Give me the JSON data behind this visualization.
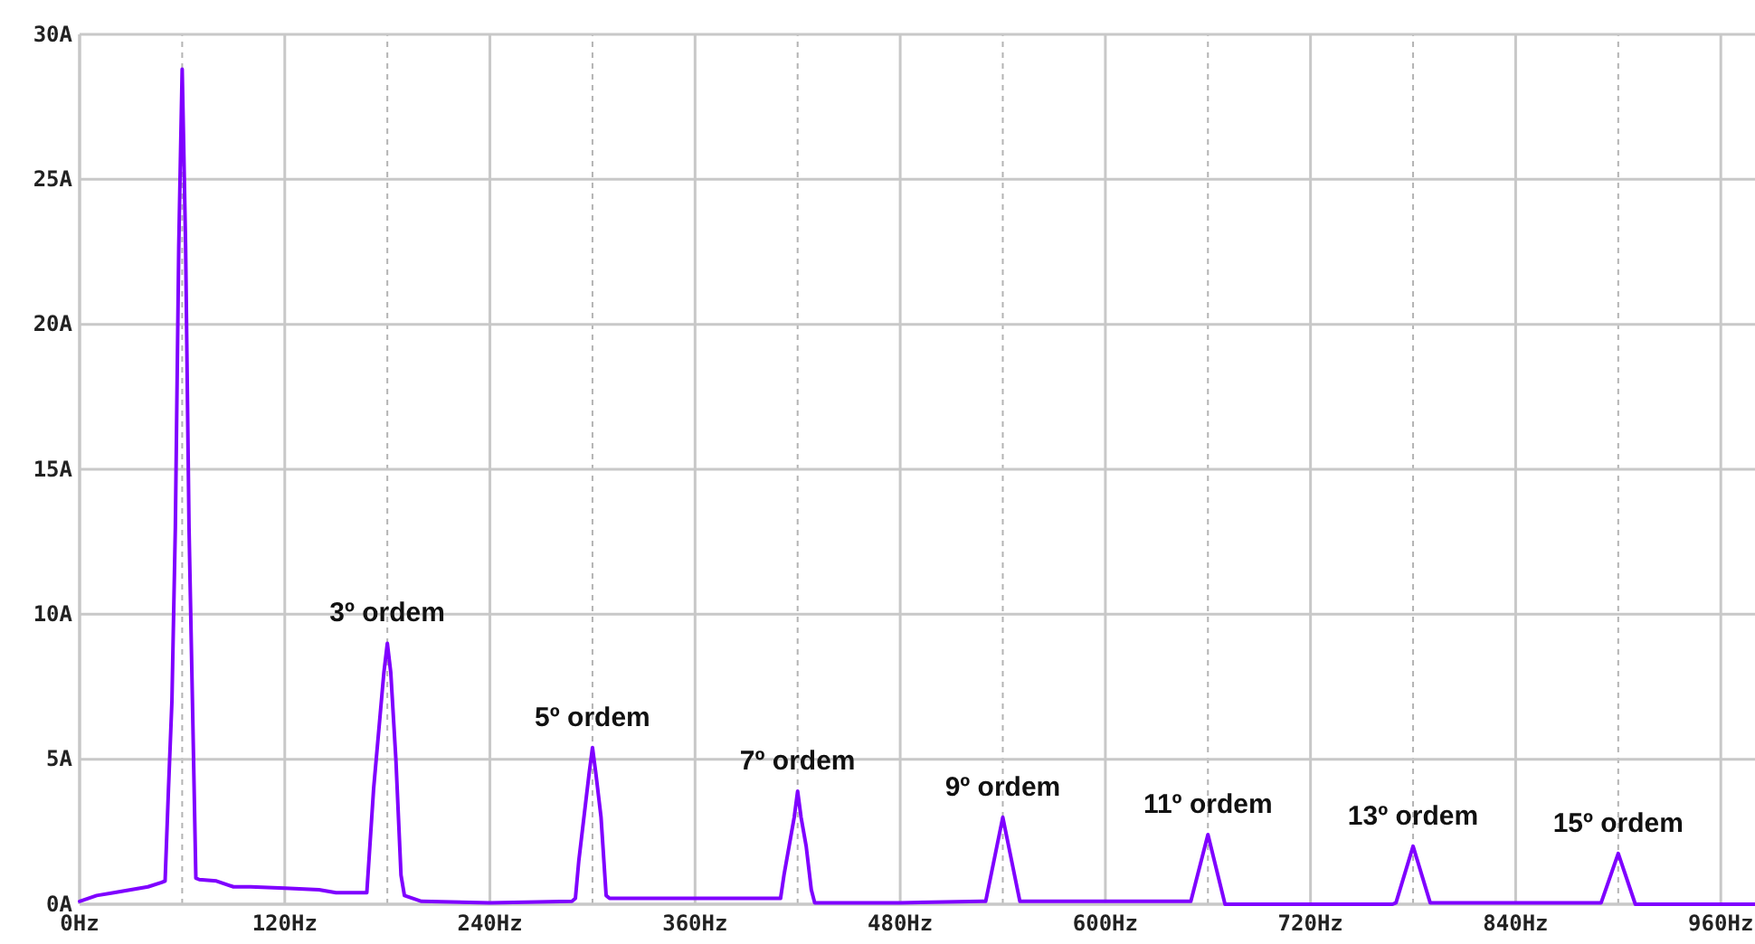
{
  "chart_data": {
    "type": "line",
    "x": [
      0,
      10,
      20,
      30,
      40,
      48,
      50,
      52,
      54,
      56,
      58,
      59,
      60,
      61,
      62,
      64,
      66,
      68,
      70,
      80,
      90,
      100,
      120,
      140,
      150,
      166,
      168,
      172,
      175,
      178,
      180,
      182,
      185,
      188,
      190,
      200,
      240,
      288,
      290,
      292,
      295,
      298,
      300,
      302,
      305,
      308,
      310,
      360,
      408,
      410,
      412,
      415,
      418,
      420,
      422,
      425,
      428,
      430,
      480,
      528,
      530,
      540,
      550,
      600,
      648,
      650,
      660,
      670,
      720,
      768,
      770,
      780,
      790,
      840,
      888,
      890,
      900,
      910,
      980
    ],
    "series": [
      {
        "color": "#7f00ff",
        "values": [
          0.1,
          0.3,
          0.4,
          0.5,
          0.6,
          0.75,
          0.8,
          4,
          7,
          13,
          22.7,
          25.8,
          28.8,
          25.8,
          22.7,
          13,
          7,
          0.9,
          0.85,
          0.8,
          0.6,
          0.6,
          0.55,
          0.5,
          0.4,
          0.4,
          0.4,
          4,
          6,
          8,
          9,
          8,
          5,
          1,
          0.3,
          0.1,
          0.05,
          0.1,
          0.2,
          1.5,
          3,
          4.5,
          5.4,
          4.5,
          3,
          0.3,
          0.2,
          0.2,
          0.2,
          0.2,
          1,
          2,
          3,
          3.9,
          3,
          2,
          0.5,
          0.05,
          0.05,
          0.1,
          0.1,
          3,
          0.1,
          0.1,
          0.1,
          0.1,
          2.4,
          0,
          0,
          0,
          0.05,
          2,
          0.05,
          0.05,
          0.05,
          0.05,
          1.75,
          0,
          0
        ]
      }
    ],
    "xlim": [
      0,
      980
    ],
    "ylim": [
      0,
      30
    ],
    "xticks": [
      {
        "value": 0,
        "label": "0Hz"
      },
      {
        "value": 60,
        "label": null
      },
      {
        "value": 120,
        "label": "120Hz"
      },
      {
        "value": 180,
        "label": null
      },
      {
        "value": 240,
        "label": "240Hz"
      },
      {
        "value": 300,
        "label": null
      },
      {
        "value": 360,
        "label": "360Hz"
      },
      {
        "value": 420,
        "label": null
      },
      {
        "value": 480,
        "label": "480Hz"
      },
      {
        "value": 540,
        "label": null
      },
      {
        "value": 600,
        "label": "600Hz"
      },
      {
        "value": 660,
        "label": null
      },
      {
        "value": 720,
        "label": "720Hz"
      },
      {
        "value": 780,
        "label": null
      },
      {
        "value": 840,
        "label": "840Hz"
      },
      {
        "value": 900,
        "label": null
      },
      {
        "value": 960,
        "label": "960Hz"
      }
    ],
    "yticks": [
      {
        "value": 0,
        "label": "0A"
      },
      {
        "value": 5,
        "label": "5A"
      },
      {
        "value": 10,
        "label": "10A"
      },
      {
        "value": 15,
        "label": "15A"
      },
      {
        "value": 20,
        "label": "20A"
      },
      {
        "value": 25,
        "label": "25A"
      },
      {
        "value": 30,
        "label": "30A"
      }
    ],
    "grid": true,
    "annotations": [
      {
        "text": "3º ordem",
        "x": 180,
        "y": 9
      },
      {
        "text": "5º ordem",
        "x": 300,
        "y": 5.4
      },
      {
        "text": "7º ordem",
        "x": 420,
        "y": 3.9
      },
      {
        "text": "9º ordem",
        "x": 540,
        "y": 3
      },
      {
        "text": "11º ordem",
        "x": 660,
        "y": 2.4
      },
      {
        "text": "13º ordem",
        "x": 780,
        "y": 2
      },
      {
        "text": "15º ordem",
        "x": 900,
        "y": 1.75
      }
    ]
  }
}
